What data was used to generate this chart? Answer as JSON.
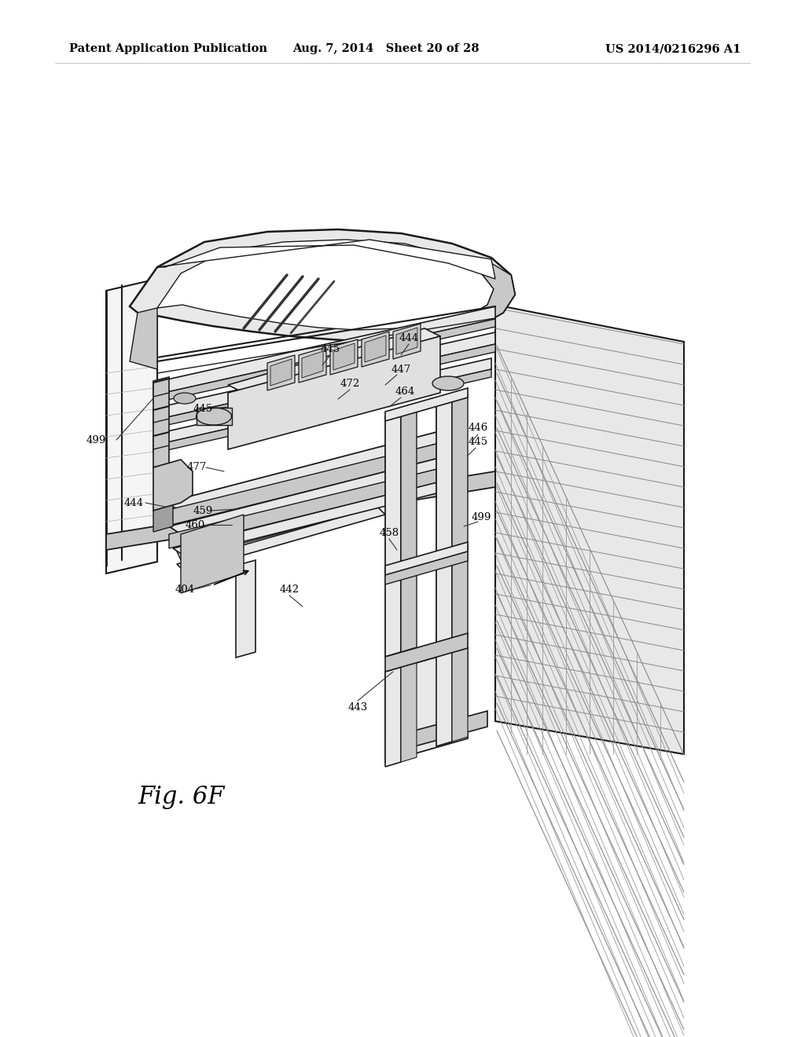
{
  "header_left": "Patent Application Publication",
  "header_center": "Aug. 7, 2014   Sheet 20 of 28",
  "header_right": "US 2014/0216296 A1",
  "figure_label": "Fig. 6F",
  "background_color": "#ffffff",
  "line_color": "#1a1a1a",
  "header_font_size": 10.5,
  "figure_label_font_size": 22,
  "gray_light": "#e8e8e8",
  "gray_mid": "#c8c8c8",
  "gray_dark": "#a0a0a0",
  "white": "#ffffff"
}
